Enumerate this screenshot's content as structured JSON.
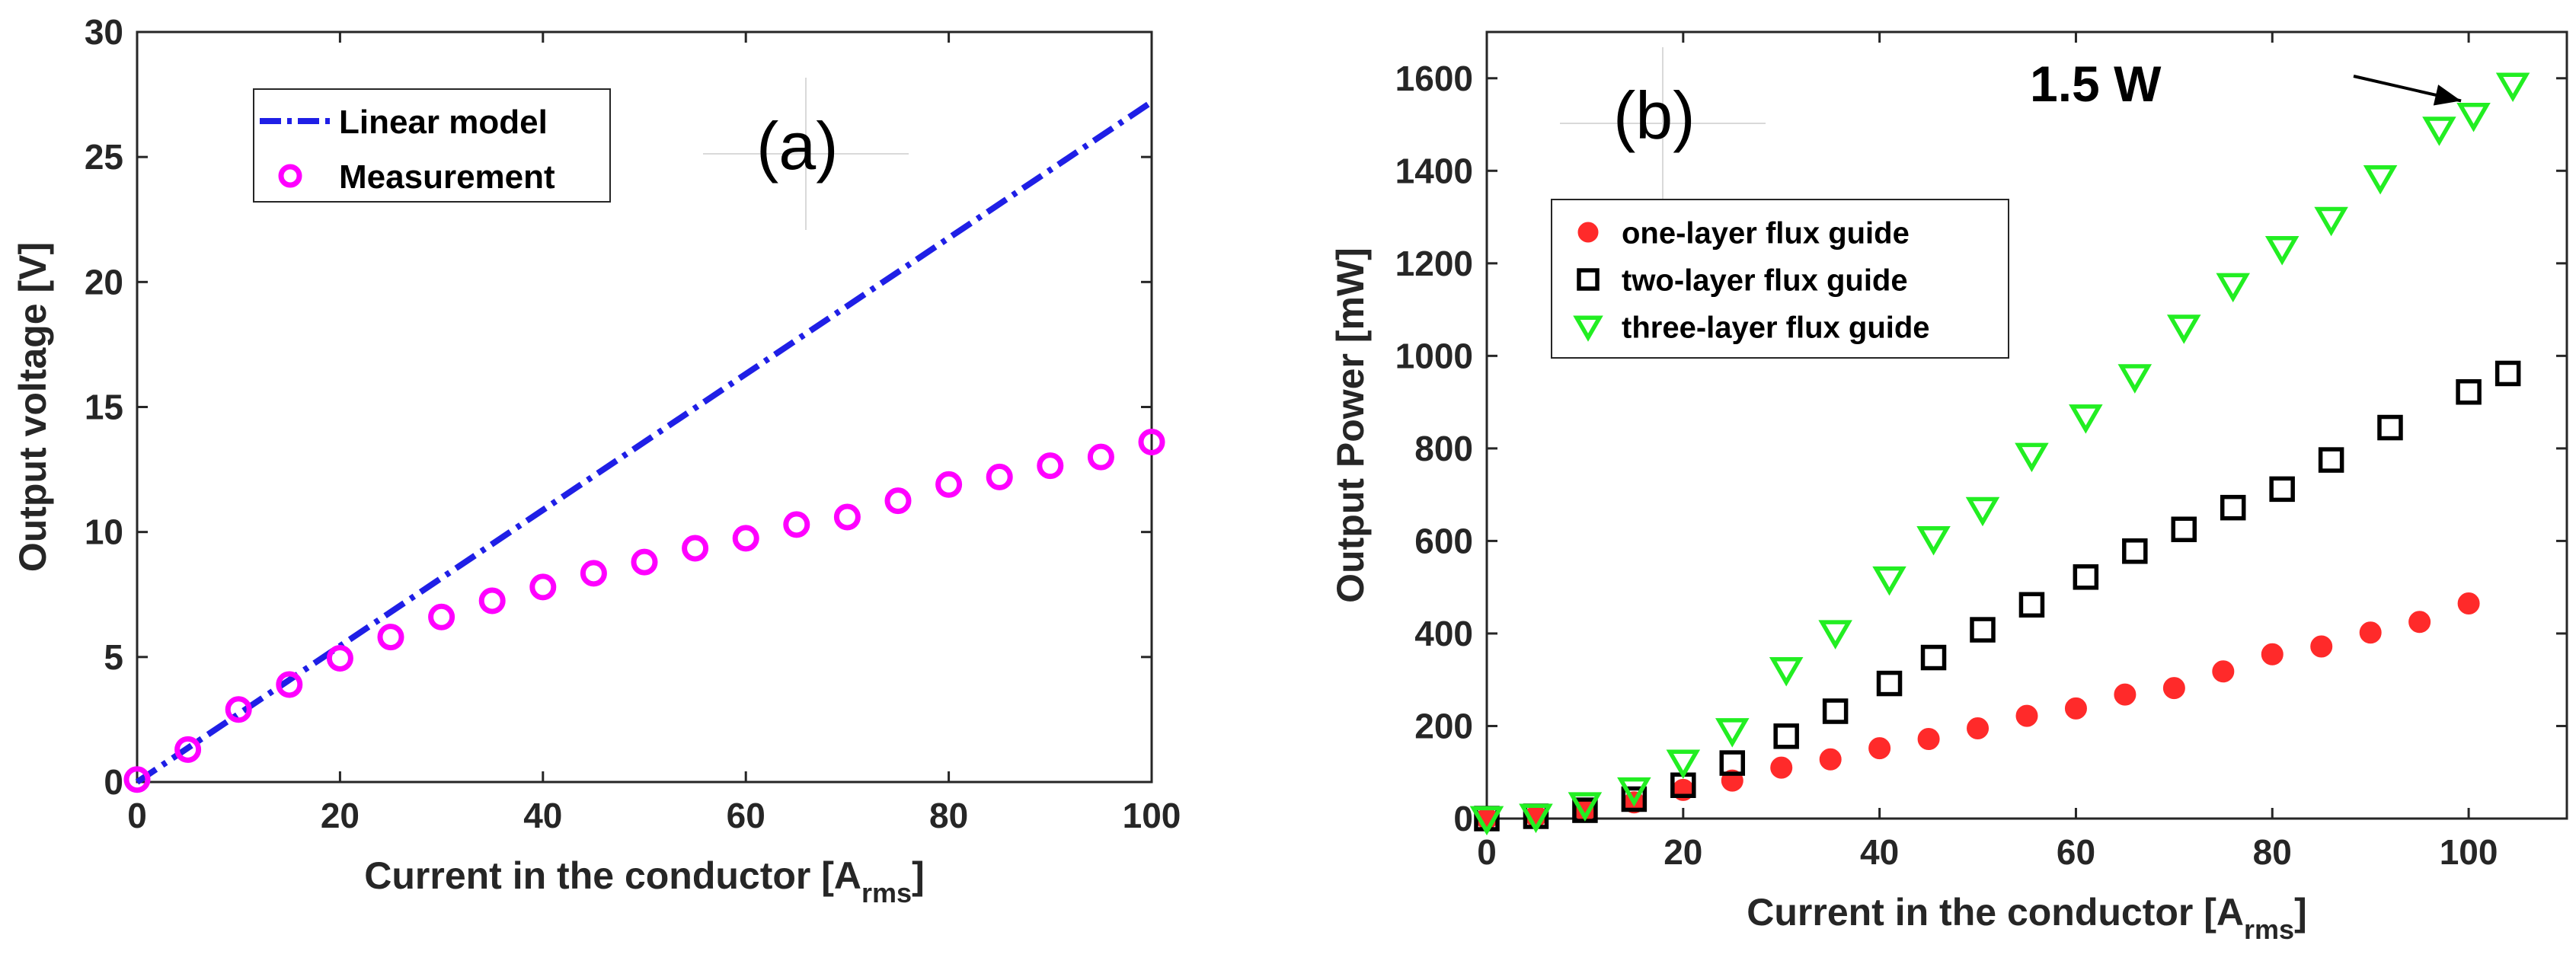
{
  "colors": {
    "linear_model": "#1f1fe6",
    "measurement": "#ff00ff",
    "one_layer": "#ff2a2a",
    "two_layer": "#000000",
    "three_layer": "#22ee22",
    "axis": "#262626"
  },
  "chart_data": [
    {
      "id": "a",
      "type": "line+scatter",
      "panel_label": "(a)",
      "xlabel_main": "Current in the conductor [A",
      "xlabel_sub": "rms",
      "xlabel_end": "]",
      "ylabel": "Output voltage [V]",
      "xlim": [
        0,
        100
      ],
      "ylim": [
        0,
        30
      ],
      "xticks": [
        0,
        20,
        40,
        60,
        80,
        100
      ],
      "yticks": [
        0,
        5,
        10,
        15,
        20,
        25,
        30
      ],
      "legend_position": "top-left",
      "series": [
        {
          "name": "Linear model",
          "kind": "line",
          "style": "dash-dot",
          "color": "#1f1fe6",
          "x": [
            0,
            100
          ],
          "y": [
            0,
            27.2
          ]
        },
        {
          "name": "Measurement",
          "kind": "scatter",
          "marker": "circle",
          "color": "#ff00ff",
          "x": [
            0,
            5,
            10,
            15,
            20,
            25,
            30,
            35,
            40,
            45,
            50,
            55,
            60,
            65,
            70,
            75,
            80,
            85,
            90,
            95,
            100
          ],
          "y": [
            0.1,
            1.3,
            2.9,
            3.9,
            4.95,
            5.8,
            6.6,
            7.25,
            7.8,
            8.35,
            8.8,
            9.35,
            9.75,
            10.3,
            10.6,
            11.25,
            11.9,
            12.2,
            12.65,
            13.0,
            13.6
          ]
        }
      ]
    },
    {
      "id": "b",
      "type": "scatter",
      "panel_label": "(b)",
      "xlabel_main": "Current in the conductor [A",
      "xlabel_sub": "rms",
      "xlabel_end": "]",
      "ylabel": "Output Power [mW]",
      "xlim": [
        0,
        110
      ],
      "ylim": [
        0,
        1700
      ],
      "xticks": [
        0,
        20,
        40,
        60,
        80,
        100
      ],
      "yticks": [
        0,
        200,
        400,
        600,
        800,
        1000,
        1200,
        1400,
        1600
      ],
      "legend_position": "upper-left",
      "annotation": {
        "text": "1.5 W",
        "x": 100,
        "y": 1515
      },
      "series": [
        {
          "name": "one-layer flux guide",
          "marker": "filled-circle",
          "color": "#ff2a2a",
          "x": [
            0,
            5,
            10,
            15,
            20,
            25,
            30,
            35,
            40,
            45,
            50,
            55,
            60,
            65,
            70,
            75,
            80,
            85,
            90,
            95,
            100
          ],
          "y": [
            0,
            5,
            18,
            35,
            62,
            82,
            110,
            128,
            152,
            172,
            195,
            222,
            238,
            268,
            282,
            318,
            355,
            372,
            402,
            425,
            465
          ]
        },
        {
          "name": "two-layer flux guide",
          "marker": "square",
          "color": "#000000",
          "x": [
            0,
            5,
            10,
            15,
            20,
            25,
            30.5,
            35.5,
            41,
            45.5,
            50.5,
            55.5,
            61,
            66,
            71,
            76,
            81,
            86,
            92,
            100,
            104
          ],
          "y": [
            0,
            5,
            18,
            42,
            72,
            120,
            178,
            232,
            292,
            348,
            408,
            462,
            522,
            578,
            625,
            672,
            712,
            775,
            845,
            922,
            962
          ]
        },
        {
          "name": "three-layer flux guide",
          "marker": "triangle-down",
          "color": "#22ee22",
          "x": [
            0,
            5,
            10,
            15,
            20,
            25,
            30.5,
            35.5,
            41,
            45.5,
            50.5,
            55.5,
            61,
            66,
            71,
            76,
            81,
            86,
            91,
            97,
            100.5,
            104.5
          ],
          "y": [
            0,
            5,
            30,
            62,
            122,
            190,
            322,
            402,
            518,
            605,
            668,
            785,
            868,
            955,
            1062,
            1152,
            1232,
            1295,
            1385,
            1490,
            1520,
            1585
          ]
        }
      ]
    }
  ]
}
